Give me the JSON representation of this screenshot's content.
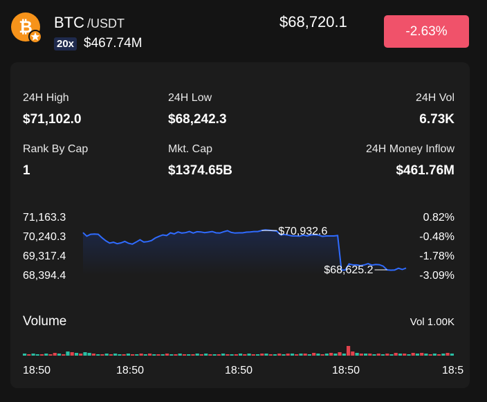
{
  "header": {
    "coin_icon": "bitcoin-logo-icon",
    "star_icon": "star-icon",
    "base": "BTC",
    "quote": "/USDT",
    "leverage": "20x",
    "volume": "$467.74M",
    "price": "$68,720.1",
    "change": "-2.63%"
  },
  "stats": {
    "high_label": "24H High",
    "high_value": "$71,102.0",
    "low_label": "24H Low",
    "low_value": "$68,242.3",
    "vol_label": "24H Vol",
    "vol_value": "6.73K",
    "rank_label": "Rank By Cap",
    "rank_value": "1",
    "cap_label": "Mkt. Cap",
    "cap_value": "$1374.65B",
    "inflow_label": "24H Money Inflow",
    "inflow_value": "$461.76M"
  },
  "chart_data": {
    "type": "line",
    "y_ticks": [
      "71,163.3",
      "70,240.3",
      "69,317.4",
      "68,394.4"
    ],
    "y_right_ticks": [
      "0.82%",
      "-0.48%",
      "-1.78%",
      "-3.09%"
    ],
    "ylim": [
      68394.4,
      71163.3
    ],
    "annotations": [
      {
        "index": 47,
        "label": "$70,932.6"
      },
      {
        "index": 80,
        "label": "$68,625.2"
      }
    ],
    "values": [
      70400,
      70230,
      70320,
      70330,
      70320,
      70150,
      70010,
      69900,
      69940,
      69870,
      69910,
      69980,
      69890,
      69850,
      69950,
      70060,
      69950,
      69970,
      70020,
      70140,
      70220,
      70290,
      70260,
      70390,
      70340,
      70430,
      70380,
      70400,
      70450,
      70380,
      70440,
      70430,
      70400,
      70420,
      70450,
      70390,
      70380,
      70440,
      70490,
      70410,
      70380,
      70390,
      70390,
      70420,
      70430,
      70450,
      70450,
      70500,
      70530,
      70510,
      70490,
      70470,
      70290,
      70310,
      70280,
      70240,
      70240,
      70230,
      70280,
      70240,
      70290,
      70300,
      70280,
      70220,
      70240,
      70240,
      70240,
      70260,
      68610,
      68620,
      68910,
      68860,
      68860,
      68830,
      68860,
      68920,
      68850,
      68880,
      68870,
      68800,
      68625,
      68610,
      68620,
      68700,
      68640,
      68710
    ]
  },
  "volume": {
    "title": "Volume",
    "total": "Vol 1.00K",
    "times": [
      "18:50",
      "18:50",
      "18:50",
      "18:50",
      "18:5"
    ],
    "up_color": "#2bbfa4",
    "down_color": "#e0434d",
    "bars": [
      3,
      2,
      3,
      2,
      2,
      3,
      2,
      4,
      3,
      2,
      6,
      5,
      4,
      3,
      5,
      4,
      3,
      2,
      2,
      3,
      2,
      3,
      2,
      2,
      3,
      2,
      2,
      3,
      2,
      3,
      2,
      2,
      2,
      3,
      2,
      2,
      3,
      2,
      2,
      2,
      3,
      2,
      3,
      2,
      2,
      2,
      3,
      2,
      2,
      2,
      3,
      2,
      3,
      2,
      2,
      3,
      3,
      2,
      2,
      3,
      2,
      3,
      3,
      2,
      3,
      3,
      2,
      4,
      3,
      2,
      3,
      4,
      3,
      5,
      3,
      14,
      6,
      4,
      3,
      3,
      3,
      2,
      3,
      2,
      3,
      2,
      4,
      3,
      3,
      2,
      4,
      3,
      4,
      3,
      2,
      3,
      2,
      3,
      4,
      3
    ],
    "dirs": [
      0,
      1,
      0,
      0,
      1,
      0,
      1,
      1,
      0,
      1,
      0,
      1,
      0,
      1,
      0,
      0,
      1,
      0,
      1,
      0,
      1,
      0,
      0,
      1,
      0,
      1,
      0,
      1,
      0,
      1,
      0,
      1,
      0,
      1,
      0,
      1,
      0,
      1,
      0,
      1,
      0,
      1,
      0,
      1,
      0,
      1,
      0,
      1,
      0,
      1,
      0,
      1,
      0,
      1,
      0,
      1,
      0,
      1,
      0,
      1,
      0,
      1,
      0,
      1,
      0,
      1,
      0,
      1,
      0,
      1,
      0,
      1,
      0,
      1,
      0,
      1,
      1,
      0,
      1,
      0,
      1,
      0,
      1,
      0,
      1,
      0,
      1,
      0,
      1,
      0,
      1,
      0,
      1,
      0,
      1,
      0,
      1,
      0,
      1,
      0
    ]
  }
}
